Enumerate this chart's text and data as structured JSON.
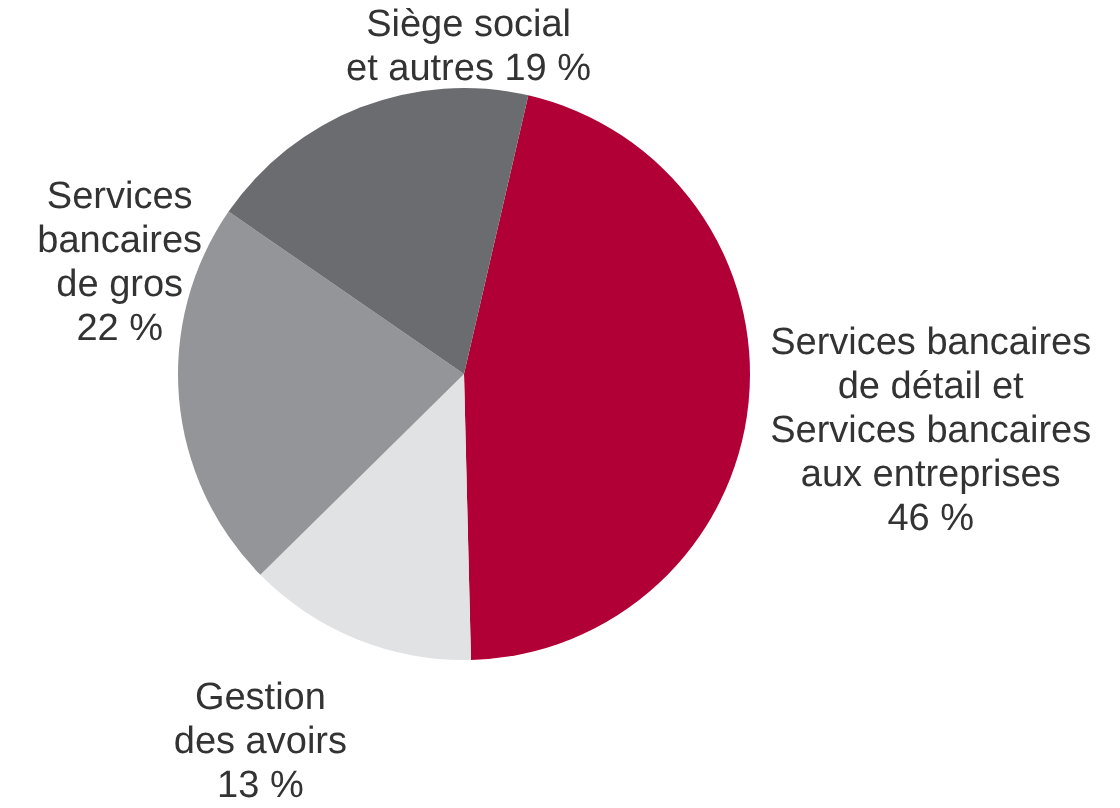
{
  "chart_data": {
    "type": "pie",
    "categories": [
      "Services bancaires de détail et Services bancaires aux entreprises",
      "Gestion des avoirs",
      "Services bancaires de gros",
      "Siège social et autres"
    ],
    "values": [
      46,
      13,
      22,
      19
    ],
    "value_labels": [
      "46 %",
      "13 %",
      "22 %",
      "19 %"
    ],
    "colors": [
      "#b10036",
      "#e1e2e4",
      "#949598",
      "#6b6c6f"
    ]
  }
}
